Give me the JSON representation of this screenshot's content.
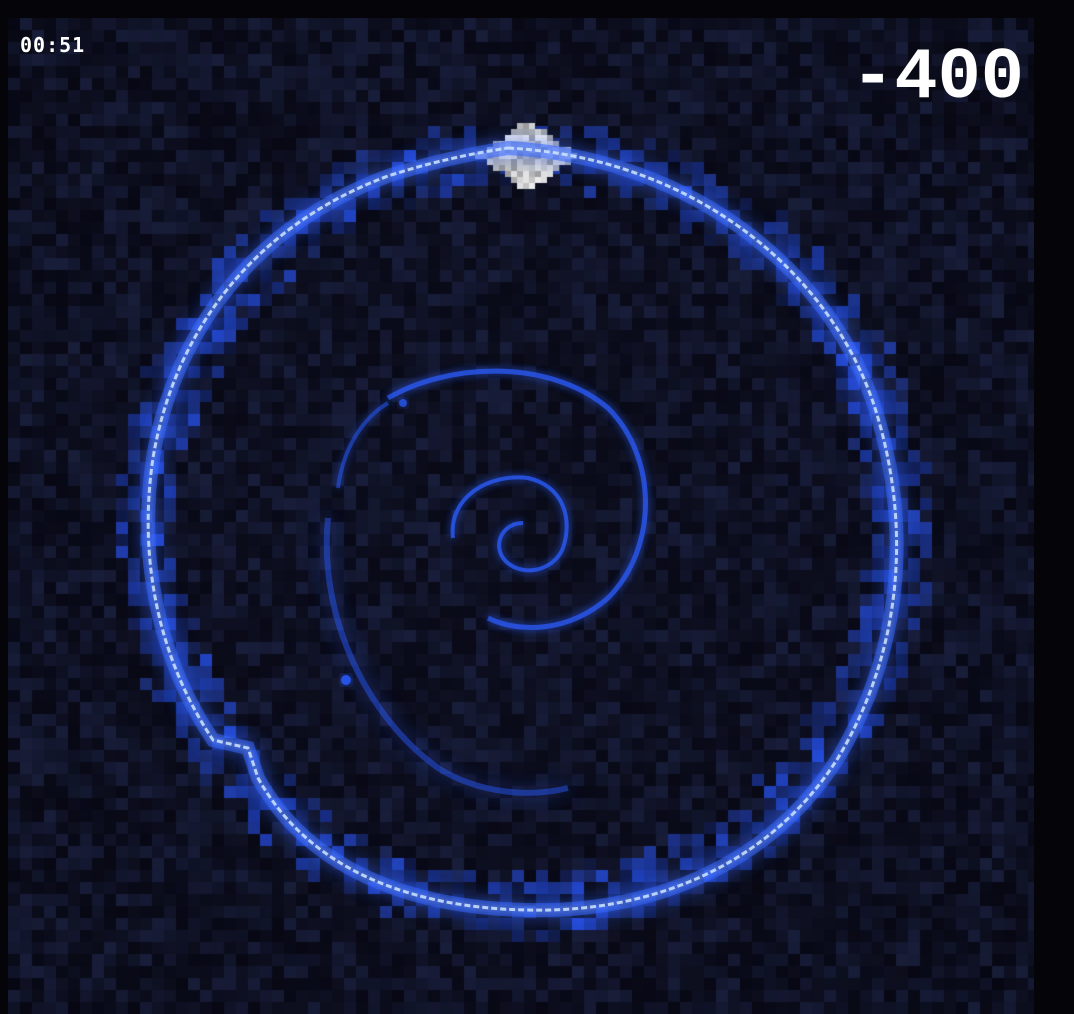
{
  "hud": {
    "timer": "00:51",
    "score": "-400"
  },
  "colors": {
    "background": "#050509",
    "ring_glow": "#2a5cff",
    "ring_core": "#cfe6ff",
    "cluster": "#d8d8d8",
    "hud_text": "#ffffff"
  }
}
